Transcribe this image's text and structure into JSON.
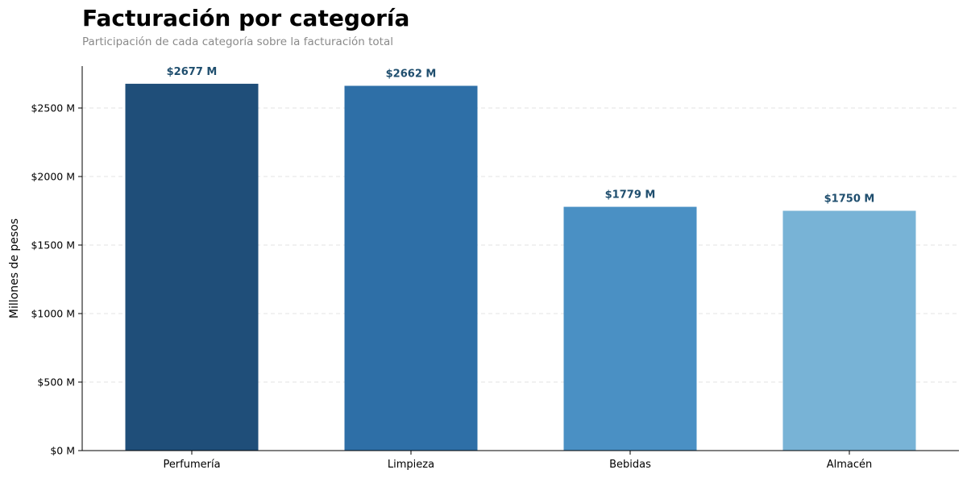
{
  "chart_data": {
    "type": "bar",
    "title": "Facturación por categoría",
    "subtitle": "Participación de cada categoría sobre la facturación total",
    "xlabel": "",
    "ylabel": "Millones de pesos",
    "categories": [
      "Perfumería",
      "Limpieza",
      "Bebidas",
      "Almacén"
    ],
    "values": [
      2677,
      2662,
      1779,
      1750
    ],
    "data_labels": [
      "$2677 M",
      "$2662 M",
      "$1779 M",
      "$1750 M"
    ],
    "bar_colors": [
      "#1f4e79",
      "#2e6fa7",
      "#4a90c4",
      "#78b3d6"
    ],
    "label_color": "#1f4e6e",
    "ylim": [
      0,
      2800
    ],
    "yticks": [
      0,
      500,
      1000,
      1500,
      2000,
      2500
    ],
    "ytick_labels": [
      "$0 M",
      "$500 M",
      "$1000 M",
      "$1500 M",
      "$2000 M",
      "$2500 M"
    ],
    "grid": "horizontal dashed",
    "legend": "none"
  }
}
